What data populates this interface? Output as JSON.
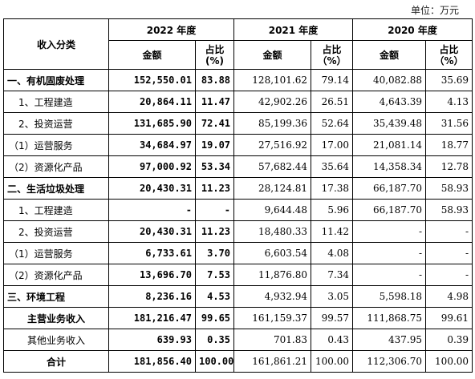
{
  "unit_label": "单位：万元",
  "header": {
    "category": "收入分类",
    "year_2022": "2022 年度",
    "year_2021": "2021 年度",
    "year_2020": "2020 年度",
    "amount": "金额",
    "ratio_2022": "占比\n(%)",
    "ratio_2021": "占比\n（%）",
    "ratio_2020": "占比\n（%）"
  },
  "rows": [
    {
      "cat": "一、有机固废处理",
      "a22": "152,550.01",
      "r22": "83.88",
      "a21": "128,101.62",
      "r21": "79.14",
      "a20": "40,082.88",
      "r20": "35.69"
    },
    {
      "cat": "1、工程建造",
      "a22": "20,864.11",
      "r22": "11.47",
      "a21": "42,902.26",
      "r21": "26.51",
      "a20": "4,643.39",
      "r20": "4.13"
    },
    {
      "cat": "2、投资运营",
      "a22": "131,685.90",
      "r22": "72.41",
      "a21": "85,199.36",
      "r21": "52.64",
      "a20": "35,439.48",
      "r20": "31.56"
    },
    {
      "cat": "（1）运营服务",
      "a22": "34,684.97",
      "r22": "19.07",
      "a21": "27,516.92",
      "r21": "17.00",
      "a20": "21,081.14",
      "r20": "18.77"
    },
    {
      "cat": "（2）资源化产品",
      "a22": "97,000.92",
      "r22": "53.34",
      "a21": "57,682.44",
      "r21": "35.64",
      "a20": "14,358.34",
      "r20": "12.78"
    },
    {
      "cat": "二、生活垃圾处理",
      "a22": "20,430.31",
      "r22": "11.23",
      "a21": "28,124.81",
      "r21": "17.38",
      "a20": "66,187.70",
      "r20": "58.93"
    },
    {
      "cat": "1、工程建造",
      "a22": "-",
      "r22": "-",
      "a21": "9,644.48",
      "r21": "5.96",
      "a20": "66,187.70",
      "r20": "58.93"
    },
    {
      "cat": "2、投资运营",
      "a22": "20,430.31",
      "r22": "11.23",
      "a21": "18,480.33",
      "r21": "11.42",
      "a20": "-",
      "r20": "-"
    },
    {
      "cat": "（1）运营服务",
      "a22": "6,733.61",
      "r22": "3.70",
      "a21": "6,603.54",
      "r21": "4.08",
      "a20": "-",
      "r20": "-"
    },
    {
      "cat": "（2）资源化产品",
      "a22": "13,696.70",
      "r22": "7.53",
      "a21": "11,876.80",
      "r21": "7.34",
      "a20": "-",
      "r20": "-"
    },
    {
      "cat": "三、环境工程",
      "a22": "8,236.16",
      "r22": "4.53",
      "a21": "4,932.94",
      "r21": "3.05",
      "a20": "5,598.18",
      "r20": "4.98"
    },
    {
      "cat": "主营业务收入",
      "a22": "181,216.47",
      "r22": "99.65",
      "a21": "161,159.37",
      "r21": "99.57",
      "a20": "111,868.75",
      "r20": "99.61"
    },
    {
      "cat": "其他业务收入",
      "a22": "639.93",
      "r22": "0.35",
      "a21": "701.83",
      "r21": "0.43",
      "a20": "437.95",
      "r20": "0.39"
    },
    {
      "cat": "合计",
      "a22": "181,856.40",
      "r22": "100.00",
      "a21": "161,861.21",
      "r21": "100.00",
      "a20": "112,306.70",
      "r20": "100.00"
    }
  ]
}
